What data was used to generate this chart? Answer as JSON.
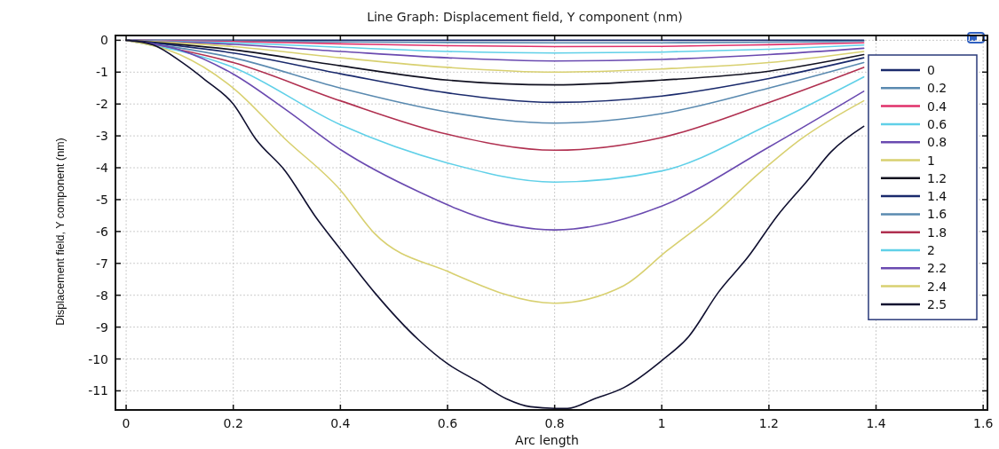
{
  "chart_data": {
    "type": "line",
    "title": "Line Graph: Displacement field, Y component (nm)",
    "xlabel": "Arc length",
    "ylabel": "Displacement field, Y component (nm)",
    "xlim": [
      -0.02,
      1.608
    ],
    "ylim": [
      -11.6,
      0.15
    ],
    "xticks": [
      0,
      0.2,
      0.4,
      0.6,
      0.8,
      1,
      1.2,
      1.4,
      1.6
    ],
    "yticks": [
      0,
      -1,
      -2,
      -3,
      -4,
      -5,
      -6,
      -7,
      -8,
      -9,
      -10,
      -11
    ],
    "grid": true,
    "legend": "top right",
    "line_style": "solid",
    "marker": "none",
    "x": [
      0,
      0.2,
      0.4,
      0.6,
      0.8,
      1.0,
      1.2,
      1.377
    ],
    "series": [
      {
        "name": "0",
        "color": "#1a2a6c",
        "values": [
          0,
          0,
          0,
          0,
          0,
          0,
          0,
          0
        ]
      },
      {
        "name": "0.2",
        "color": "#5a8ab0",
        "values": [
          0,
          -0.02,
          -0.05,
          -0.07,
          -0.08,
          -0.08,
          -0.06,
          -0.03
        ]
      },
      {
        "name": "0.4",
        "color": "#e0306a",
        "values": [
          0,
          -0.04,
          -0.11,
          -0.17,
          -0.2,
          -0.19,
          -0.14,
          -0.08
        ]
      },
      {
        "name": "0.6",
        "color": "#60d0e8",
        "values": [
          0,
          -0.08,
          -0.22,
          -0.35,
          -0.4,
          -0.37,
          -0.28,
          -0.15
        ]
      },
      {
        "name": "0.8",
        "color": "#6a4ab0",
        "values": [
          0,
          -0.13,
          -0.35,
          -0.55,
          -0.65,
          -0.6,
          -0.45,
          -0.25
        ]
      },
      {
        "name": "1",
        "color": "#d8d070",
        "values": [
          0,
          -0.2,
          -0.55,
          -0.85,
          -1.0,
          -0.9,
          -0.7,
          -0.35
        ]
      },
      {
        "name": "1.2",
        "color": "#101020",
        "values": [
          0,
          -0.3,
          -0.8,
          -1.25,
          -1.4,
          -1.25,
          -0.97,
          -0.45
        ]
      },
      {
        "name": "1.4",
        "color": "#1a2a6c",
        "values": [
          0,
          -0.4,
          -1.05,
          -1.65,
          -1.95,
          -1.75,
          -1.2,
          -0.55
        ]
      },
      {
        "name": "1.6",
        "color": "#5a8ab0",
        "values": [
          0,
          -0.55,
          -1.5,
          -2.25,
          -2.6,
          -2.3,
          -1.5,
          -0.7
        ]
      },
      {
        "name": "1.8",
        "color": "#b03050",
        "values": [
          0,
          -0.7,
          -1.9,
          -2.95,
          -3.45,
          -3.05,
          -1.95,
          -0.85
        ]
      },
      {
        "name": "2",
        "color": "#60d0e8",
        "values": [
          0,
          -0.85,
          -2.65,
          -3.85,
          -4.45,
          -4.1,
          -2.65,
          -1.15
        ]
      },
      {
        "name": "2.2",
        "color": "#6a4ab0",
        "x": [
          0,
          0.1,
          0.2,
          0.3,
          0.402,
          0.546,
          0.69,
          0.8,
          1.0,
          1.2,
          1.377
        ],
        "values": [
          0,
          -0.3,
          -1.06,
          -2.2,
          -3.45,
          -4.75,
          -5.7,
          -5.95,
          -5.2,
          -3.35,
          -1.6
        ]
      },
      {
        "name": "2.4",
        "color": "#d8d070",
        "x": [
          0,
          0.1,
          0.2,
          0.297,
          0.4,
          0.463,
          0.6,
          0.8,
          0.929,
          1.01,
          1.095,
          1.18,
          1.26,
          1.377
        ],
        "values": [
          0,
          -0.45,
          -1.5,
          -3.1,
          -4.7,
          -6.05,
          -7.25,
          -8.25,
          -7.7,
          -6.6,
          -5.5,
          -4.2,
          -3.1,
          -1.9
        ]
      },
      {
        "name": "2.5",
        "color": "#101030",
        "x": [
          0,
          0.05,
          0.104,
          0.148,
          0.2,
          0.242,
          0.297,
          0.352,
          0.402,
          0.463,
          0.546,
          0.6,
          0.656,
          0.71,
          0.755,
          0.8,
          0.824,
          0.874,
          0.929,
          1.0,
          1.05,
          1.106,
          1.161,
          1.216,
          1.272,
          1.316,
          1.377
        ],
        "values": [
          0,
          -0.14,
          -0.69,
          -1.25,
          -2.0,
          -3.1,
          -4.1,
          -5.5,
          -6.6,
          -7.9,
          -9.4,
          -10.15,
          -10.7,
          -11.25,
          -11.5,
          -11.55,
          -11.55,
          -11.25,
          -10.9,
          -10.05,
          -9.3,
          -7.9,
          -6.8,
          -5.5,
          -4.4,
          -3.5,
          -2.7
        ]
      }
    ]
  }
}
